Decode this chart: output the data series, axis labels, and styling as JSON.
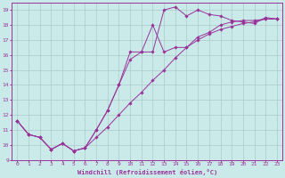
{
  "xlabel": "Windchill (Refroidissement éolien,°C)",
  "xlim": [
    -0.5,
    23.5
  ],
  "ylim": [
    9,
    19.5
  ],
  "yticks": [
    9,
    10,
    11,
    12,
    13,
    14,
    15,
    16,
    17,
    18,
    19
  ],
  "xticks": [
    0,
    1,
    2,
    3,
    4,
    5,
    6,
    7,
    8,
    9,
    10,
    11,
    12,
    13,
    14,
    15,
    16,
    17,
    18,
    19,
    20,
    21,
    22,
    23
  ],
  "background_color": "#caeaea",
  "grid_color": "#b0c8c8",
  "line_color": "#993399",
  "line1_x": [
    0,
    1,
    2,
    3,
    4,
    5,
    6,
    7,
    8,
    9,
    10,
    11,
    12,
    13,
    14,
    15,
    16,
    17,
    18,
    19,
    20,
    21,
    22,
    23
  ],
  "line1_y": [
    11.6,
    10.7,
    10.5,
    9.7,
    10.1,
    9.6,
    9.8,
    11.0,
    12.3,
    14.0,
    15.7,
    16.2,
    16.2,
    19.0,
    19.2,
    18.6,
    19.0,
    18.7,
    18.6,
    18.3,
    18.2,
    18.1,
    18.5,
    18.4
  ],
  "line2_x": [
    0,
    1,
    2,
    3,
    4,
    5,
    6,
    7,
    8,
    9,
    10,
    11,
    12,
    13,
    14,
    15,
    16,
    17,
    18,
    19,
    20,
    21,
    22,
    23
  ],
  "line2_y": [
    11.6,
    10.7,
    10.5,
    9.7,
    10.1,
    9.6,
    9.8,
    10.5,
    11.2,
    12.0,
    12.8,
    13.5,
    14.3,
    15.0,
    15.8,
    16.5,
    17.0,
    17.4,
    17.7,
    17.9,
    18.1,
    18.2,
    18.4,
    18.4
  ],
  "line3_x": [
    0,
    1,
    2,
    3,
    4,
    5,
    6,
    7,
    8,
    9,
    10,
    11,
    12,
    13,
    14,
    15,
    16,
    17,
    18,
    19,
    20,
    21,
    22,
    23
  ],
  "line3_y": [
    11.6,
    10.7,
    10.5,
    9.7,
    10.1,
    9.6,
    9.8,
    11.0,
    12.3,
    14.0,
    16.2,
    16.2,
    18.0,
    16.2,
    16.5,
    16.5,
    17.2,
    17.5,
    18.0,
    18.2,
    18.3,
    18.3,
    18.4,
    18.4
  ]
}
